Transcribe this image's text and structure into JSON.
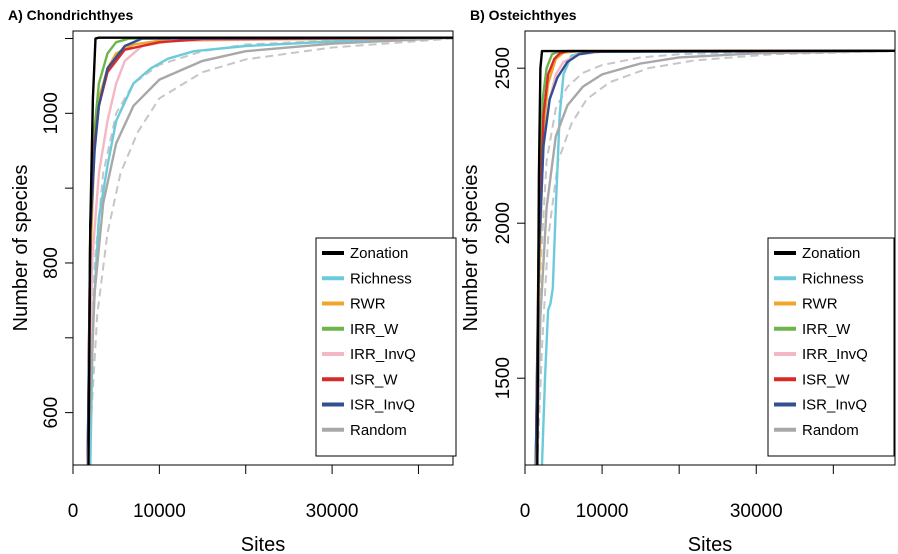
{
  "chart_data": [
    {
      "type": "line",
      "title": "A) Chondrichthyes",
      "xlabel": "Sites",
      "ylabel": "Number of species",
      "xlim": [
        0,
        44000
      ],
      "ylim": [
        530,
        1110
      ],
      "x_ticks": [
        0,
        10000,
        20000,
        30000,
        40000
      ],
      "x_tick_labels": [
        "0",
        "10000",
        "",
        "30000",
        ""
      ],
      "y_ticks": [
        600,
        700,
        800,
        900,
        1000,
        1100
      ],
      "y_tick_labels": [
        "600",
        "",
        "800",
        "",
        "1000",
        ""
      ],
      "legend": "bottom-right",
      "series": [
        {
          "name": "Zonation",
          "color": "#000000",
          "x": [
            1800,
            2000,
            2300,
            2600,
            3000,
            44000
          ],
          "y": [
            530,
            850,
            1020,
            1100,
            1101,
            1101
          ]
        },
        {
          "name": "Richness",
          "color": "#6ccbdb",
          "x": [
            2000,
            2300,
            3000,
            4000,
            5000,
            7000,
            9000,
            11000,
            14000,
            20000,
            30000,
            44000
          ],
          "y": [
            530,
            720,
            860,
            930,
            990,
            1040,
            1060,
            1073,
            1083,
            1090,
            1096,
            1101
          ]
        },
        {
          "name": "RWR",
          "color": "#f0a52b",
          "x": [
            1700,
            2000,
            2500,
            3000,
            4000,
            5000,
            7000,
            10000,
            44000
          ],
          "y": [
            530,
            800,
            960,
            1020,
            1060,
            1080,
            1092,
            1097,
            1101
          ]
        },
        {
          "name": "IRR_W",
          "color": "#6bb54a",
          "x": [
            1700,
            2000,
            2500,
            3000,
            4000,
            5000,
            6500,
            44000
          ],
          "y": [
            530,
            850,
            980,
            1040,
            1080,
            1095,
            1100,
            1101
          ]
        },
        {
          "name": "IRR_InvQ",
          "color": "#f5b7c4",
          "x": [
            1800,
            2200,
            3000,
            4000,
            5000,
            6000,
            8000,
            12000,
            44000
          ],
          "y": [
            530,
            800,
            920,
            990,
            1040,
            1070,
            1090,
            1098,
            1101
          ]
        },
        {
          "name": "ISR_W",
          "color": "#d82a28",
          "x": [
            1700,
            2000,
            2500,
            3000,
            4000,
            6000,
            10000,
            15000,
            44000
          ],
          "y": [
            530,
            850,
            960,
            1010,
            1055,
            1085,
            1095,
            1099,
            1101
          ]
        },
        {
          "name": "ISR_InvQ",
          "color": "#324f92",
          "x": [
            1700,
            2000,
            2500,
            3000,
            4000,
            6000,
            8000,
            44000
          ],
          "y": [
            530,
            840,
            950,
            1010,
            1060,
            1090,
            1100,
            1101
          ]
        },
        {
          "name": "Random",
          "color": "#a8a8a8",
          "x": [
            1700,
            2500,
            3500,
            5000,
            7000,
            10000,
            15000,
            20000,
            30000,
            44000
          ],
          "y": [
            530,
            760,
            880,
            960,
            1010,
            1045,
            1070,
            1083,
            1093,
            1101
          ]
        },
        {
          "name": "",
          "color": "#c6c6c6",
          "dashed": true,
          "x": [
            1700,
            2500,
            3500,
            5000,
            7000,
            10000,
            15000,
            20000,
            30000,
            44000
          ],
          "y": [
            530,
            800,
            920,
            1000,
            1040,
            1065,
            1083,
            1092,
            1097,
            1101
          ]
        },
        {
          "name": "",
          "color": "#c6c6c6",
          "dashed": true,
          "x": [
            1800,
            2800,
            4000,
            5500,
            7500,
            10000,
            15000,
            20000,
            30000,
            44000
          ],
          "y": [
            530,
            730,
            840,
            920,
            975,
            1020,
            1055,
            1072,
            1088,
            1100
          ]
        }
      ]
    },
    {
      "type": "line",
      "title": "B) Osteichthyes",
      "xlabel": "Sites",
      "ylabel": "Number of species",
      "xlim": [
        0,
        48000
      ],
      "ylim": [
        1220,
        2620
      ],
      "x_ticks": [
        0,
        10000,
        20000,
        30000,
        40000
      ],
      "x_tick_labels": [
        "0",
        "10000",
        "",
        "30000",
        ""
      ],
      "y_ticks": [
        1500,
        2000,
        2500
      ],
      "y_tick_labels": [
        "1500",
        "2000",
        "2500"
      ],
      "legend": "bottom-right",
      "series": [
        {
          "name": "Zonation",
          "color": "#000000",
          "x": [
            1600,
            1800,
            2000,
            2200,
            48000
          ],
          "y": [
            1220,
            2150,
            2500,
            2555,
            2556
          ]
        },
        {
          "name": "Richness",
          "color": "#6ccbdb",
          "x": [
            2200,
            2600,
            3000,
            3300,
            3600,
            4000,
            4500,
            5000,
            6000,
            8000,
            48000
          ],
          "y": [
            1220,
            1500,
            1720,
            1740,
            1790,
            2050,
            2350,
            2480,
            2540,
            2553,
            2556
          ]
        },
        {
          "name": "RWR",
          "color": "#f0a52b",
          "x": [
            1400,
            1800,
            2400,
            3000,
            4000,
            5000,
            7000,
            48000
          ],
          "y": [
            1220,
            1800,
            2300,
            2450,
            2530,
            2550,
            2555,
            2556
          ]
        },
        {
          "name": "IRR_W",
          "color": "#6bb54a",
          "x": [
            1400,
            1800,
            2300,
            2800,
            3500,
            4500,
            48000
          ],
          "y": [
            1220,
            2000,
            2400,
            2500,
            2545,
            2555,
            2556
          ]
        },
        {
          "name": "IRR_InvQ",
          "color": "#f5b7c4",
          "x": [
            1400,
            1800,
            2400,
            3200,
            4000,
            5000,
            7000,
            10000,
            48000
          ],
          "y": [
            1220,
            1900,
            2250,
            2400,
            2480,
            2520,
            2545,
            2553,
            2556
          ]
        },
        {
          "name": "ISR_W",
          "color": "#d82a28",
          "x": [
            1400,
            1800,
            2400,
            3000,
            3800,
            4500,
            5500,
            48000
          ],
          "y": [
            1220,
            1950,
            2350,
            2480,
            2530,
            2548,
            2555,
            2556
          ]
        },
        {
          "name": "ISR_InvQ",
          "color": "#324f92",
          "x": [
            1400,
            1800,
            2400,
            3200,
            4200,
            5500,
            7000,
            9000,
            48000
          ],
          "y": [
            1220,
            1900,
            2250,
            2400,
            2470,
            2520,
            2545,
            2553,
            2556
          ]
        },
        {
          "name": "Random",
          "color": "#a8a8a8",
          "x": [
            1500,
            2000,
            2800,
            4000,
            5500,
            7500,
            10000,
            15000,
            20000,
            30000,
            48000
          ],
          "y": [
            1220,
            1700,
            2050,
            2280,
            2380,
            2440,
            2480,
            2515,
            2535,
            2548,
            2556
          ]
        },
        {
          "name": "",
          "color": "#c6c6c6",
          "dashed": true,
          "x": [
            1500,
            2000,
            2800,
            4000,
            5500,
            7500,
            10000,
            15000,
            20000,
            30000,
            48000
          ],
          "y": [
            1220,
            1850,
            2200,
            2370,
            2440,
            2485,
            2510,
            2535,
            2545,
            2552,
            2556
          ]
        },
        {
          "name": "",
          "color": "#c6c6c6",
          "dashed": true,
          "x": [
            1600,
            2200,
            3000,
            4300,
            6000,
            8000,
            11000,
            16000,
            22000,
            32000,
            48000
          ],
          "y": [
            1220,
            1600,
            1950,
            2200,
            2320,
            2400,
            2455,
            2500,
            2525,
            2545,
            2555
          ]
        }
      ]
    }
  ]
}
